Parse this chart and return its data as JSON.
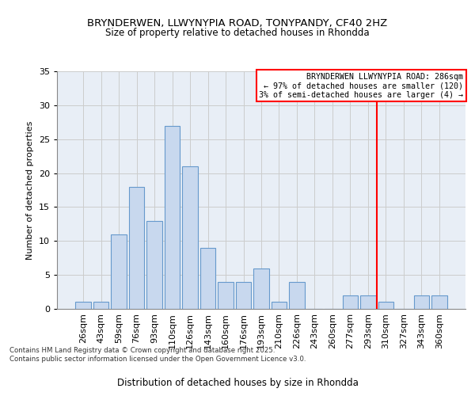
{
  "title1": "BRYNDERWEN, LLWYNYPIA ROAD, TONYPANDY, CF40 2HZ",
  "title2": "Size of property relative to detached houses in Rhondda",
  "xlabel": "Distribution of detached houses by size in Rhondda",
  "ylabel": "Number of detached properties",
  "categories": [
    "26sqm",
    "43sqm",
    "59sqm",
    "76sqm",
    "93sqm",
    "110sqm",
    "126sqm",
    "143sqm",
    "160sqm",
    "176sqm",
    "193sqm",
    "210sqm",
    "226sqm",
    "243sqm",
    "260sqm",
    "277sqm",
    "293sqm",
    "310sqm",
    "327sqm",
    "343sqm",
    "360sqm"
  ],
  "values": [
    1,
    1,
    11,
    18,
    13,
    27,
    21,
    9,
    4,
    4,
    6,
    1,
    4,
    0,
    0,
    2,
    2,
    1,
    0,
    2,
    2
  ],
  "bar_color": "#c8d8ee",
  "bar_edge_color": "#6699cc",
  "ylim": [
    0,
    35
  ],
  "yticks": [
    0,
    5,
    10,
    15,
    20,
    25,
    30,
    35
  ],
  "vline_index": 16.5,
  "annotation_text_line1": "BRYNDERWEN LLWYNYPIA ROAD: 286sqm",
  "annotation_text_line2": "← 97% of detached houses are smaller (120)",
  "annotation_text_line3": "3% of semi-detached houses are larger (4) →",
  "footer": "Contains HM Land Registry data © Crown copyright and database right 2025.\nContains public sector information licensed under the Open Government Licence v3.0.",
  "grid_color": "#cccccc",
  "background_color": "#e8eef6"
}
